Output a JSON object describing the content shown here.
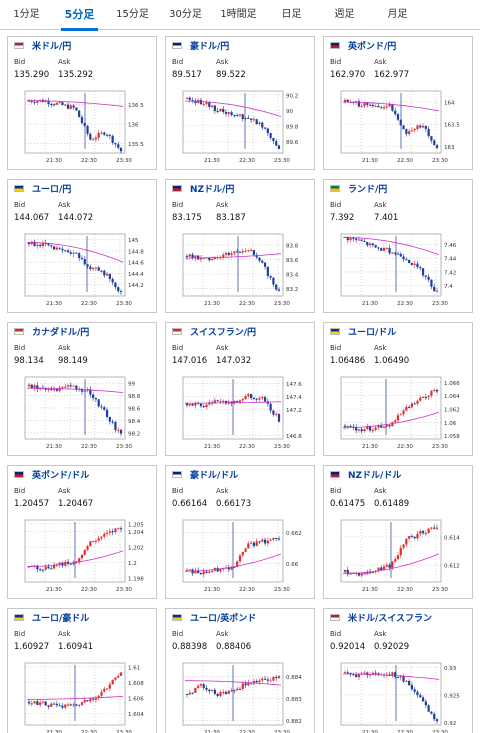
{
  "tabs": [
    {
      "label": "1分足",
      "active": false
    },
    {
      "label": "5分足",
      "active": true
    },
    {
      "label": "15分足",
      "active": false
    },
    {
      "label": "30分足",
      "active": false
    },
    {
      "label": "1時間足",
      "active": false
    },
    {
      "label": "日足",
      "active": false
    },
    {
      "label": "週足",
      "active": false
    },
    {
      "label": "月足",
      "active": false
    }
  ],
  "labels": {
    "bid": "Bid",
    "ask": "Ask"
  },
  "colors": {
    "up": "#e03030",
    "down": "#1f3ca0",
    "ma": "#cc33cc",
    "link": "#003d99",
    "tab_active": "#0073d4"
  },
  "x_ticks": [
    "21:30",
    "22:30",
    "23:30"
  ],
  "pairs": [
    {
      "name": "米ドル/円",
      "flag": "us-jp-flag-icon",
      "bid": "135.290",
      "ask": "135.292",
      "chart_data": {
        "type": "candlestick",
        "y_ticks": [
          "136.5",
          "136",
          "135.5"
        ],
        "ylim": [
          135.25,
          136.85
        ],
        "trend": [
          136.6,
          136.6,
          136.5,
          136.4,
          135.6,
          135.8,
          135.3
        ],
        "jump_at": 0.6,
        "ma": [
          136.6,
          136.45
        ]
      }
    },
    {
      "name": "豪ドル/円",
      "flag": "au-jp-flag-icon",
      "bid": "89.517",
      "ask": "89.522",
      "chart_data": {
        "type": "candlestick",
        "y_ticks": [
          "90.2",
          "90",
          "89.8",
          "89.6"
        ],
        "ylim": [
          89.45,
          90.25
        ],
        "trend": [
          90.15,
          90.1,
          90.0,
          89.95,
          89.9,
          89.8,
          89.5
        ],
        "jump_at": 0.62,
        "ma": [
          90.12,
          89.92
        ]
      }
    },
    {
      "name": "英ポンド/円",
      "flag": "gb-jp-flag-icon",
      "bid": "162.970",
      "ask": "162.977",
      "chart_data": {
        "type": "candlestick",
        "y_ticks": [
          "164",
          "163.5",
          "163"
        ],
        "ylim": [
          162.85,
          164.25
        ],
        "trend": [
          164.0,
          163.95,
          163.9,
          163.9,
          163.3,
          163.5,
          162.95
        ],
        "jump_at": 0.6,
        "ma": [
          164.0,
          163.8
        ]
      }
    },
    {
      "name": "ユーロ/円",
      "flag": "eu-jp-flag-icon",
      "bid": "144.067",
      "ask": "144.072",
      "chart_data": {
        "type": "candlestick",
        "y_ticks": [
          "145",
          "144.8",
          "144.6",
          "144.4",
          "144.2"
        ],
        "ylim": [
          144.0,
          145.1
        ],
        "trend": [
          144.95,
          144.9,
          144.8,
          144.75,
          144.5,
          144.4,
          144.05
        ],
        "jump_at": 0.62,
        "ma": [
          144.95,
          144.6
        ]
      }
    },
    {
      "name": "NZドル/円",
      "flag": "nz-jp-flag-icon",
      "bid": "83.175",
      "ask": "83.187",
      "chart_data": {
        "type": "candlestick",
        "y_ticks": [
          "83.8",
          "83.6",
          "83.4",
          "83.2"
        ],
        "ylim": [
          83.1,
          83.95
        ],
        "trend": [
          83.65,
          83.6,
          83.65,
          83.7,
          83.75,
          83.5,
          83.15
        ],
        "jump_at": 0.55,
        "ma": [
          83.62,
          83.68
        ]
      }
    },
    {
      "name": "ランド/円",
      "flag": "za-jp-flag-icon",
      "bid": "7.392",
      "ask": "7.401",
      "chart_data": {
        "type": "candlestick",
        "y_ticks": [
          "7.46",
          "7.44",
          "7.42",
          "7.4"
        ],
        "ylim": [
          7.385,
          7.475
        ],
        "trend": [
          7.47,
          7.465,
          7.455,
          7.45,
          7.44,
          7.42,
          7.39
        ],
        "jump_at": 0.55,
        "ma": [
          7.47,
          7.445
        ]
      }
    },
    {
      "name": "カナダドル/円",
      "flag": "ca-jp-flag-icon",
      "bid": "98.134",
      "ask": "98.149",
      "chart_data": {
        "type": "candlestick",
        "y_ticks": [
          "99",
          "98.8",
          "98.6",
          "98.4",
          "98.2"
        ],
        "ylim": [
          98.1,
          99.1
        ],
        "trend": [
          98.95,
          98.9,
          98.9,
          98.95,
          98.85,
          98.5,
          98.15
        ],
        "jump_at": 0.6,
        "ma": [
          98.92,
          98.85
        ]
      }
    },
    {
      "name": "スイスフラン/円",
      "flag": "ch-jp-flag-icon",
      "bid": "147.016",
      "ask": "147.032",
      "chart_data": {
        "type": "candlestick",
        "y_ticks": [
          "147.6",
          "147.4",
          "147.2",
          "146.8"
        ],
        "ylim": [
          146.75,
          147.7
        ],
        "trend": [
          147.3,
          147.25,
          147.35,
          147.3,
          147.4,
          147.35,
          147.05
        ],
        "jump_at": 0.5,
        "ma": [
          147.3,
          147.32
        ]
      }
    },
    {
      "name": "ユーロ/ドル",
      "flag": "eu-us-flag-icon",
      "bid": "1.06486",
      "ask": "1.06490",
      "chart_data": {
        "type": "candlestick",
        "y_ticks": [
          "1.066",
          "1.064",
          "1.062",
          "1.06",
          "1.058"
        ],
        "ylim": [
          1.0575,
          1.0668
        ],
        "trend": [
          1.0595,
          1.059,
          1.0592,
          1.0598,
          1.062,
          1.0635,
          1.0649
        ],
        "jump_at": 0.45,
        "ma": [
          1.0592,
          1.0615
        ]
      }
    },
    {
      "name": "英ポンド/ドル",
      "flag": "gb-us-flag-icon",
      "bid": "1.20457",
      "ask": "1.20467",
      "chart_data": {
        "type": "candlestick",
        "y_ticks": [
          "1.205",
          "1.204",
          "1.202",
          "1.2",
          "1.198"
        ],
        "ylim": [
          1.1975,
          1.2055
        ],
        "trend": [
          1.1995,
          1.1992,
          1.1998,
          1.2,
          1.2025,
          1.2035,
          1.2045
        ],
        "jump_at": 0.5,
        "ma": [
          1.1995,
          1.2015
        ]
      }
    },
    {
      "name": "豪ドル/ドル",
      "flag": "au-us-flag-icon",
      "bid": "0.66164",
      "ask": "0.66173",
      "chart_data": {
        "type": "candlestick",
        "y_ticks": [
          "0.662",
          "0.66"
        ],
        "ylim": [
          0.6588,
          0.6628
        ],
        "trend": [
          0.6595,
          0.6594,
          0.6596,
          0.6598,
          0.6612,
          0.6614,
          0.6616
        ],
        "jump_at": 0.5,
        "ma": [
          0.6595,
          0.6606
        ]
      }
    },
    {
      "name": "NZドル/ドル",
      "flag": "nz-us-flag-icon",
      "bid": "0.61475",
      "ask": "0.61489",
      "chart_data": {
        "type": "candlestick",
        "y_ticks": [
          "0.614",
          "0.612"
        ],
        "ylim": [
          0.6108,
          0.6152
        ],
        "trend": [
          0.6115,
          0.6114,
          0.6116,
          0.612,
          0.6138,
          0.6143,
          0.6147
        ],
        "jump_at": 0.5,
        "ma": [
          0.6114,
          0.6128
        ]
      }
    },
    {
      "name": "ユーロ/豪ドル",
      "flag": "eu-au-flag-icon",
      "bid": "1.60927",
      "ask": "1.60941",
      "chart_data": {
        "type": "candlestick",
        "y_ticks": [
          "1.61",
          "1.608",
          "1.606",
          "1.604"
        ],
        "ylim": [
          1.6025,
          1.6105
        ],
        "trend": [
          1.6055,
          1.6052,
          1.6048,
          1.605,
          1.6058,
          1.607,
          1.6093
        ],
        "jump_at": 0.5,
        "ma": [
          1.6058,
          1.6062
        ]
      }
    },
    {
      "name": "ユーロ/英ポンド",
      "flag": "eu-gb-flag-icon",
      "bid": "0.88398",
      "ask": "0.88406",
      "chart_data": {
        "type": "candlestick",
        "y_ticks": [
          "0.884",
          "0.883",
          "0.882"
        ],
        "ylim": [
          0.8818,
          0.8846
        ],
        "trend": [
          0.8832,
          0.8836,
          0.8832,
          0.8834,
          0.8837,
          0.8838,
          0.884
        ],
        "jump_at": 0.5,
        "ma": [
          0.8838,
          0.8836
        ]
      }
    },
    {
      "name": "米ドル/スイスフラン",
      "flag": "us-ch-flag-icon",
      "bid": "0.92014",
      "ask": "0.92029",
      "chart_data": {
        "type": "candlestick",
        "y_ticks": [
          "0.93",
          "0.925",
          "0.92"
        ],
        "ylim": [
          0.9195,
          0.9308
        ],
        "trend": [
          0.929,
          0.9285,
          0.929,
          0.9288,
          0.9275,
          0.9238,
          0.9201
        ],
        "jump_at": 0.55,
        "ma": [
          0.9288,
          0.9278
        ]
      }
    }
  ]
}
